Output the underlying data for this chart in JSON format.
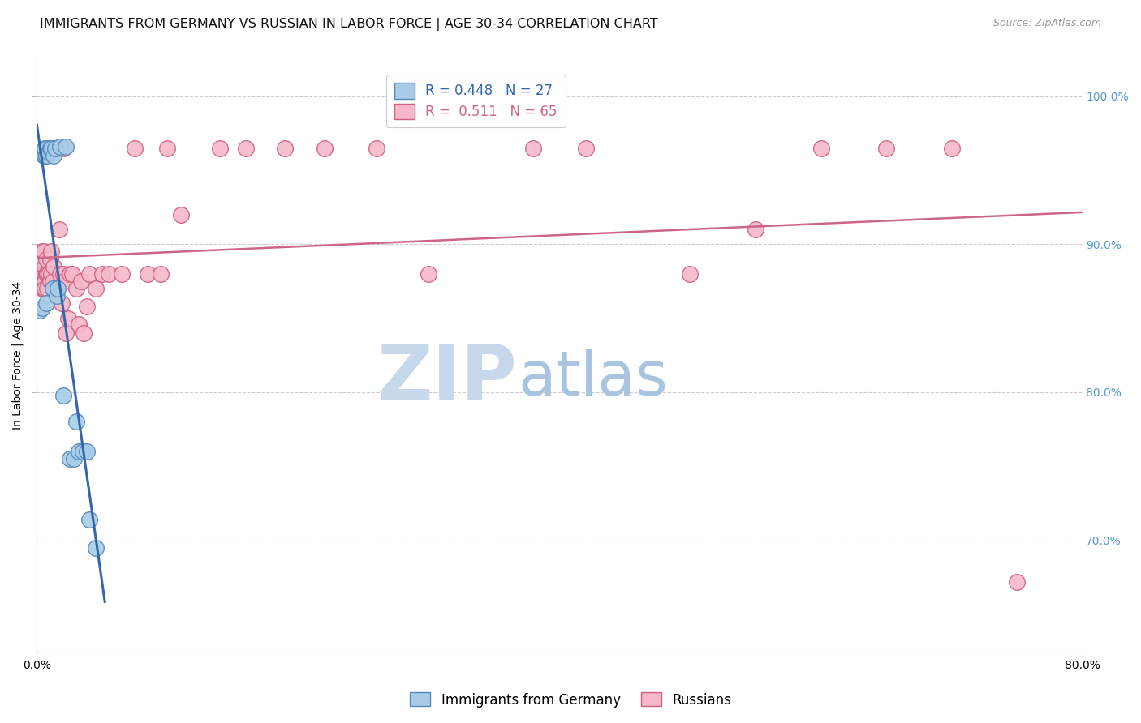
{
  "title": "IMMIGRANTS FROM GERMANY VS RUSSIAN IN LABOR FORCE | AGE 30-34 CORRELATION CHART",
  "source": "Source: ZipAtlas.com",
  "ylabel": "In Labor Force | Age 30-34",
  "xmin": 0.0,
  "xmax": 0.8,
  "ymin": 0.625,
  "ymax": 1.025,
  "yticks": [
    0.7,
    0.8,
    0.9,
    1.0
  ],
  "ytick_labels": [
    "70.0%",
    "80.0%",
    "90.0%",
    "100.0%"
  ],
  "xtick_labels": [
    "0.0%",
    "80.0%"
  ],
  "xtick_pos": [
    0.0,
    0.8
  ],
  "germany_x": [
    0.002,
    0.004,
    0.005,
    0.006,
    0.006,
    0.007,
    0.007,
    0.008,
    0.009,
    0.01,
    0.011,
    0.012,
    0.013,
    0.014,
    0.015,
    0.016,
    0.018,
    0.02,
    0.022,
    0.025,
    0.028,
    0.03,
    0.032,
    0.035,
    0.038,
    0.04,
    0.045
  ],
  "germany_y": [
    0.855,
    0.857,
    0.96,
    0.96,
    0.965,
    0.96,
    0.86,
    0.965,
    0.962,
    0.965,
    0.965,
    0.87,
    0.96,
    0.965,
    0.865,
    0.87,
    0.966,
    0.798,
    0.966,
    0.755,
    0.755,
    0.78,
    0.76,
    0.76,
    0.76,
    0.714,
    0.695
  ],
  "russia_x": [
    0.002,
    0.003,
    0.003,
    0.004,
    0.004,
    0.005,
    0.005,
    0.005,
    0.006,
    0.006,
    0.006,
    0.006,
    0.007,
    0.007,
    0.008,
    0.008,
    0.009,
    0.01,
    0.01,
    0.011,
    0.011,
    0.012,
    0.013,
    0.014,
    0.015,
    0.016,
    0.017,
    0.018,
    0.019,
    0.02,
    0.02,
    0.021,
    0.022,
    0.024,
    0.025,
    0.027,
    0.03,
    0.032,
    0.034,
    0.036,
    0.038,
    0.04,
    0.045,
    0.05,
    0.055,
    0.065,
    0.075,
    0.085,
    0.095,
    0.1,
    0.11,
    0.14,
    0.16,
    0.19,
    0.22,
    0.26,
    0.3,
    0.38,
    0.42,
    0.5,
    0.55,
    0.6,
    0.65,
    0.7,
    0.75
  ],
  "russia_y": [
    0.88,
    0.88,
    0.89,
    0.895,
    0.87,
    0.88,
    0.87,
    0.895,
    0.88,
    0.885,
    0.875,
    0.87,
    0.88,
    0.89,
    0.88,
    0.87,
    0.88,
    0.89,
    0.875,
    0.88,
    0.895,
    0.875,
    0.885,
    0.87,
    0.965,
    0.965,
    0.91,
    0.88,
    0.86,
    0.965,
    0.88,
    0.875,
    0.84,
    0.85,
    0.88,
    0.88,
    0.87,
    0.846,
    0.875,
    0.84,
    0.858,
    0.88,
    0.87,
    0.88,
    0.88,
    0.88,
    0.965,
    0.88,
    0.88,
    0.965,
    0.92,
    0.965,
    0.965,
    0.965,
    0.965,
    0.965,
    0.88,
    0.965,
    0.965,
    0.88,
    0.91,
    0.965,
    0.965,
    0.965,
    0.672
  ],
  "R_germany": 0.448,
  "N_germany": 27,
  "R_russia": 0.511,
  "N_russia": 65,
  "germany_color": "#a8cce8",
  "russia_color": "#f5b8c8",
  "germany_edge_color": "#5588bb",
  "russia_edge_color": "#d06080",
  "germany_line_color": "#3366aa",
  "russia_line_color": "#cc6688",
  "background_color": "#ffffff",
  "grid_color": "#cccccc",
  "watermark_zip": "ZIP",
  "watermark_atlas": "atlas",
  "watermark_color_zip": "#c8d8ec",
  "watermark_color_atlas": "#a8c4e0",
  "title_fontsize": 11.5,
  "axis_label_fontsize": 10,
  "tick_fontsize": 10,
  "legend_fontsize": 12,
  "right_tick_color": "#5599cc",
  "legend_text_blue": "R = 0.448   N = 27",
  "legend_text_pink": "R =  0.511   N = 65"
}
